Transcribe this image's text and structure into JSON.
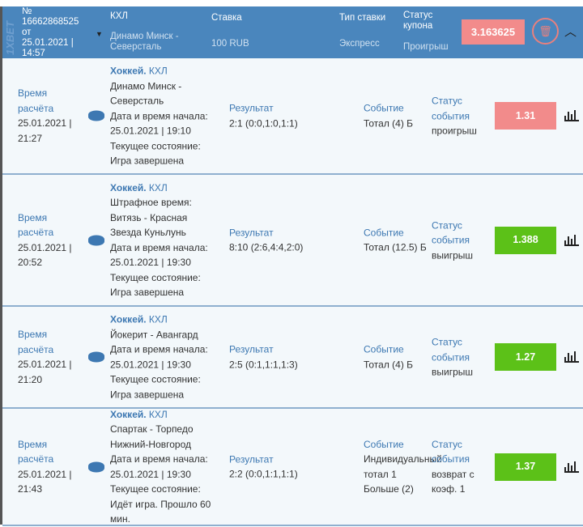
{
  "coupon": {
    "logo": "1XBET",
    "number_label": "№",
    "number": "16662868525",
    "from": "от",
    "date": "25.01.2021 |",
    "time": "14:57",
    "league": "КХЛ",
    "match": "Динамо Минск - Северсталь",
    "stake_label": "Ставка",
    "stake": "100 RUB",
    "type_label": "Тип ставки",
    "type": "Экспресс",
    "status_label": "Статус купона",
    "status": "Проигрыш",
    "coef": "3.163625",
    "coef_color": "#f28b8b"
  },
  "labels": {
    "calc_time": "Время расчёта",
    "result": "Результат",
    "event": "Событие",
    "event_status": "Статус события"
  },
  "bets": [
    {
      "sport": "Хоккей.",
      "league": "КХЛ",
      "calc_time": "25.01.2021 | 21:27",
      "match": "Динамо Минск - Северсталь",
      "start": "Дата и время начала: 25.01.2021 | 19:10",
      "state": "Текущее состояние: Игра завершена",
      "result": "2:1 (0:0,1:0,1:1)",
      "event": "Тотал (4) Б",
      "status": "проигрыш",
      "odd": "1.31",
      "color": "#f28b8b"
    },
    {
      "sport": "Хоккей.",
      "league": "КХЛ",
      "calc_time": "25.01.2021 | 20:52",
      "match": "Штрафное время: Витязь - Красная Звезда Куньлунь",
      "start": "Дата и время начала: 25.01.2021 | 19:30",
      "state": "Текущее состояние: Игра завершена",
      "result": "8:10 (2:6,4:4,2:0)",
      "event": "Тотал (12.5) Б",
      "status": "выигрыш",
      "odd": "1.388",
      "color": "#5cc118"
    },
    {
      "sport": "Хоккей.",
      "league": "КХЛ",
      "calc_time": "25.01.2021 | 21:20",
      "match": "Йокерит - Авангард",
      "start": "Дата и время начала: 25.01.2021 | 19:30",
      "state": "Текущее состояние: Игра завершена",
      "result": "2:5 (0:1,1:1,1:3)",
      "event": "Тотал (4) Б",
      "status": "выигрыш",
      "odd": "1.27",
      "color": "#5cc118"
    },
    {
      "sport": "Хоккей.",
      "league": "КХЛ",
      "calc_time": "25.01.2021 | 21:43",
      "match": "Спартак - Торпедо Нижний-Новгород",
      "start": "Дата и время начала: 25.01.2021 | 19:30",
      "state": "Текущее состояние: Идёт игра. Прошло 60 мин.",
      "result": "2:2 (0:0,1:1,1:1)",
      "event": "Индивидуальный тотал 1 Больше (2)",
      "status": "возврат с коэф. 1",
      "odd": "1.37",
      "color": "#5cc118"
    }
  ]
}
